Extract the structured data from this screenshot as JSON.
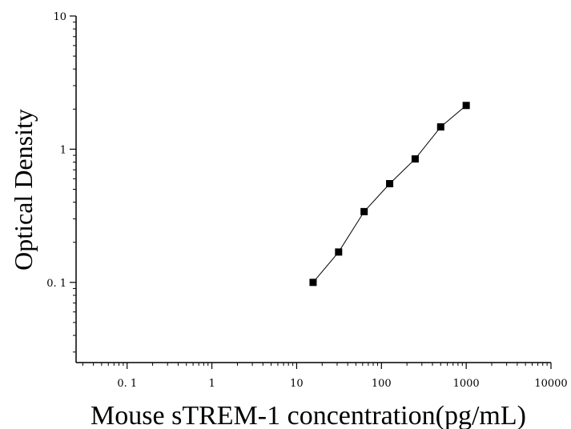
{
  "chart_data": {
    "type": "scatter",
    "title": "",
    "xlabel": "Mouse sTREM-1 concentration(pg/mL)",
    "ylabel": "Optical Density",
    "x_scale": "log",
    "y_scale": "log",
    "xlim": [
      0.025,
      10000
    ],
    "ylim": [
      0.025,
      10
    ],
    "x_ticks": [
      {
        "value": 0.1,
        "label": "0. 1"
      },
      {
        "value": 1,
        "label": "1"
      },
      {
        "value": 10,
        "label": "10"
      },
      {
        "value": 100,
        "label": "100"
      },
      {
        "value": 1000,
        "label": "1000"
      },
      {
        "value": 10000,
        "label": "10000"
      }
    ],
    "y_ticks": [
      {
        "value": 0.1,
        "label": "0. 1"
      },
      {
        "value": 1,
        "label": "1"
      },
      {
        "value": 10,
        "label": "10"
      }
    ],
    "grid": false,
    "legend": "none",
    "series": [
      {
        "marker": "square",
        "color": "#000000",
        "points": [
          {
            "x": 15.625,
            "y": 0.1
          },
          {
            "x": 31.25,
            "y": 0.169
          },
          {
            "x": 62.5,
            "y": 0.34
          },
          {
            "x": 125,
            "y": 0.551
          },
          {
            "x": 250,
            "y": 0.845
          },
          {
            "x": 500,
            "y": 1.47
          },
          {
            "x": 1000,
            "y": 2.13
          }
        ],
        "fit_line": true
      }
    ]
  }
}
